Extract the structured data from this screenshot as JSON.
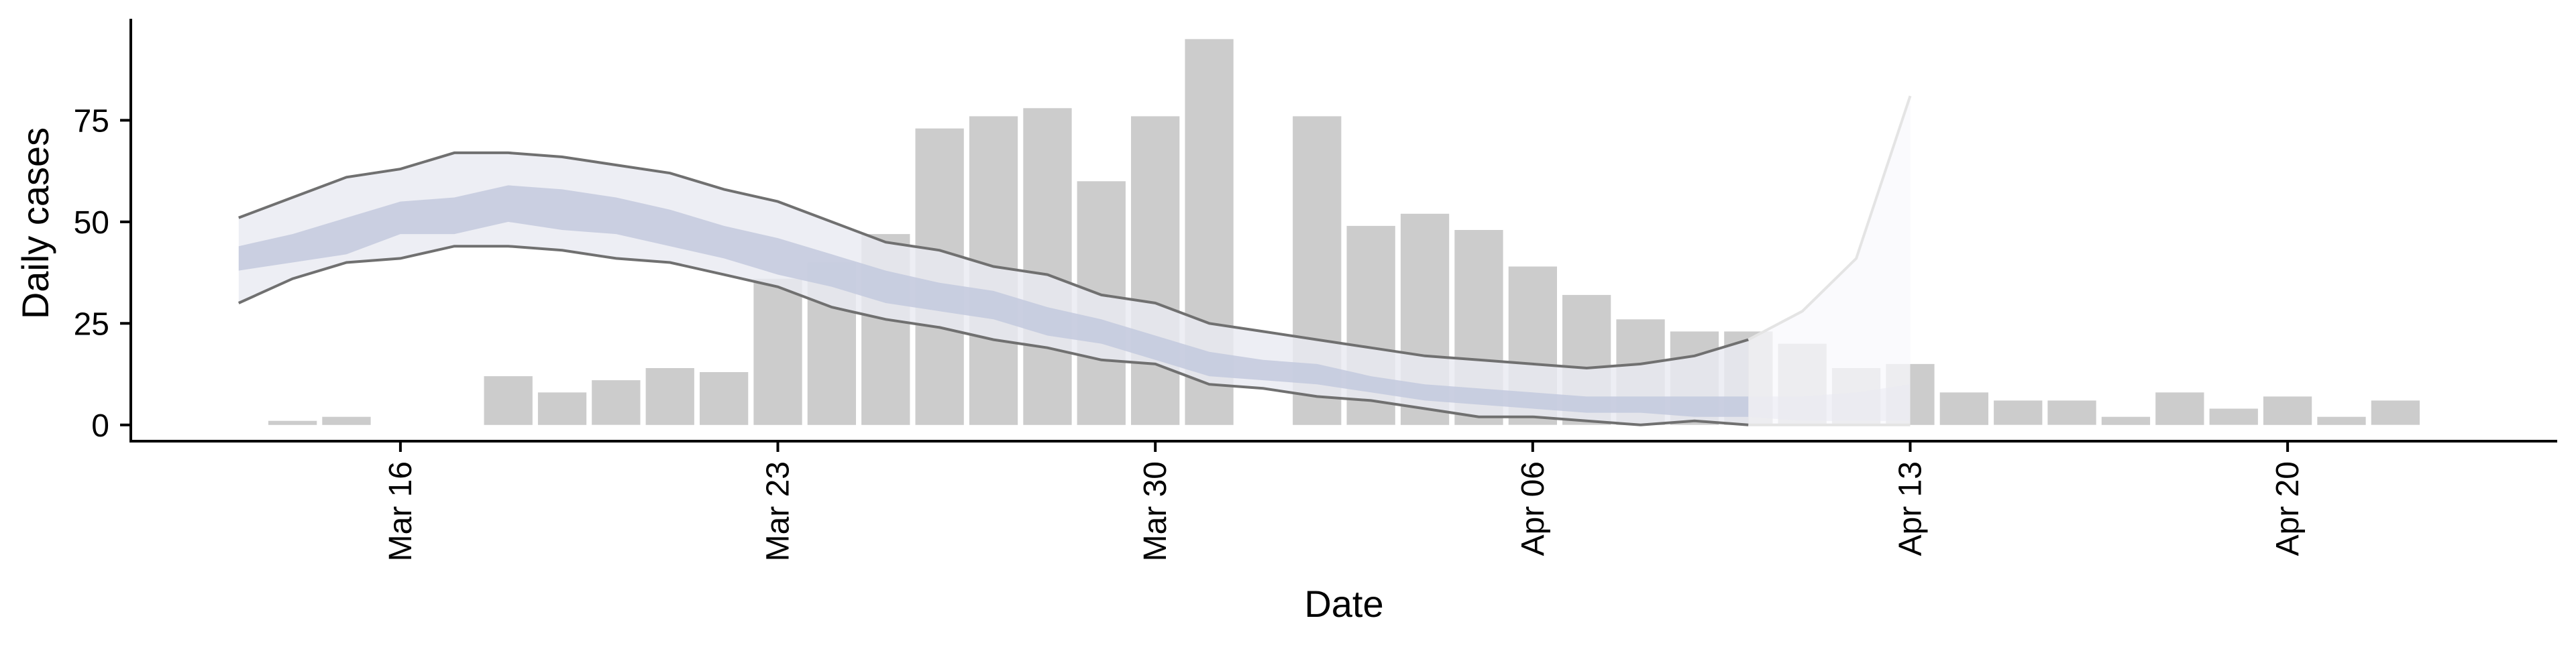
{
  "chart_data": {
    "type": "bar",
    "title": "",
    "xlabel": "Date",
    "ylabel": "Daily cases",
    "ylim": [
      -4,
      100
    ],
    "xlim": [
      "2020-03-11",
      "2020-04-25"
    ],
    "yticks": [
      0,
      25,
      50,
      75
    ],
    "xticks": [
      {
        "date": "2020-03-16",
        "label": "Mar 16"
      },
      {
        "date": "2020-03-23",
        "label": "Mar 23"
      },
      {
        "date": "2020-03-30",
        "label": "Mar 30"
      },
      {
        "date": "2020-04-06",
        "label": "Apr 06"
      },
      {
        "date": "2020-04-13",
        "label": "Apr 13"
      },
      {
        "date": "2020-04-20",
        "label": "Apr 20"
      }
    ],
    "grid": false,
    "legend": "none",
    "colors": {
      "bars": "#cccccc",
      "outer_band": "#e9eaf2",
      "inner_band": "#c2c8dd",
      "bound_line": "#707070",
      "projection_line": "#e4e4e4",
      "projection_band": "#f8f8fc"
    },
    "bars": [
      {
        "date": "2020-03-14",
        "value": 1
      },
      {
        "date": "2020-03-15",
        "value": 2
      },
      {
        "date": "2020-03-18",
        "value": 12
      },
      {
        "date": "2020-03-19",
        "value": 8
      },
      {
        "date": "2020-03-20",
        "value": 11
      },
      {
        "date": "2020-03-21",
        "value": 14
      },
      {
        "date": "2020-03-22",
        "value": 13
      },
      {
        "date": "2020-03-23",
        "value": 36
      },
      {
        "date": "2020-03-24",
        "value": 40
      },
      {
        "date": "2020-03-25",
        "value": 47
      },
      {
        "date": "2020-03-26",
        "value": 73
      },
      {
        "date": "2020-03-27",
        "value": 76
      },
      {
        "date": "2020-03-28",
        "value": 78
      },
      {
        "date": "2020-03-29",
        "value": 60
      },
      {
        "date": "2020-03-30",
        "value": 76
      },
      {
        "date": "2020-03-31",
        "value": 95
      },
      {
        "date": "2020-04-02",
        "value": 76
      },
      {
        "date": "2020-04-03",
        "value": 49
      },
      {
        "date": "2020-04-04",
        "value": 52
      },
      {
        "date": "2020-04-05",
        "value": 48
      },
      {
        "date": "2020-04-06",
        "value": 39
      },
      {
        "date": "2020-04-07",
        "value": 32
      },
      {
        "date": "2020-04-08",
        "value": 26
      },
      {
        "date": "2020-04-09",
        "value": 23
      },
      {
        "date": "2020-04-10",
        "value": 23
      },
      {
        "date": "2020-04-11",
        "value": 20
      },
      {
        "date": "2020-04-12",
        "value": 14
      },
      {
        "date": "2020-04-13",
        "value": 15
      },
      {
        "date": "2020-04-14",
        "value": 8
      },
      {
        "date": "2020-04-15",
        "value": 6
      },
      {
        "date": "2020-04-16",
        "value": 6
      },
      {
        "date": "2020-04-17",
        "value": 2
      },
      {
        "date": "2020-04-18",
        "value": 8
      },
      {
        "date": "2020-04-19",
        "value": 4
      },
      {
        "date": "2020-04-20",
        "value": 7
      },
      {
        "date": "2020-04-21",
        "value": 2
      },
      {
        "date": "2020-04-22",
        "value": 6
      }
    ],
    "band_dates": [
      "2020-03-13",
      "2020-03-14",
      "2020-03-15",
      "2020-03-16",
      "2020-03-17",
      "2020-03-18",
      "2020-03-19",
      "2020-03-20",
      "2020-03-21",
      "2020-03-22",
      "2020-03-23",
      "2020-03-24",
      "2020-03-25",
      "2020-03-26",
      "2020-03-27",
      "2020-03-28",
      "2020-03-29",
      "2020-03-30",
      "2020-03-31",
      "2020-04-01",
      "2020-04-02",
      "2020-04-03",
      "2020-04-04",
      "2020-04-05",
      "2020-04-06",
      "2020-04-07",
      "2020-04-08",
      "2020-04-09",
      "2020-04-10",
      "2020-04-11",
      "2020-04-12",
      "2020-04-13"
    ],
    "outer_upper": [
      51,
      56,
      61,
      63,
      67,
      67,
      66,
      64,
      62,
      58,
      55,
      50,
      45,
      43,
      39,
      37,
      32,
      30,
      25,
      23,
      21,
      19,
      17,
      16,
      15,
      14,
      15,
      17,
      21,
      28,
      41,
      81
    ],
    "outer_lower": [
      30,
      36,
      40,
      41,
      44,
      44,
      43,
      41,
      40,
      37,
      34,
      29,
      26,
      24,
      21,
      19,
      16,
      15,
      10,
      9,
      7,
      6,
      4,
      2,
      2,
      1,
      0,
      1,
      0,
      0,
      0,
      0
    ],
    "inner_upper": [
      44,
      47,
      51,
      55,
      56,
      59,
      58,
      56,
      53,
      49,
      46,
      42,
      38,
      35,
      33,
      29,
      26,
      22,
      18,
      16,
      15,
      12,
      10,
      9,
      8,
      7,
      7,
      7,
      7,
      7,
      8,
      10
    ],
    "inner_lower": [
      38,
      40,
      42,
      47,
      47,
      50,
      48,
      47,
      44,
      41,
      37,
      34,
      30,
      28,
      26,
      22,
      20,
      16,
      12,
      11,
      10,
      8,
      6,
      5,
      4,
      3,
      3,
      2,
      2,
      1,
      1,
      1
    ],
    "projection_start": "2020-04-10"
  }
}
